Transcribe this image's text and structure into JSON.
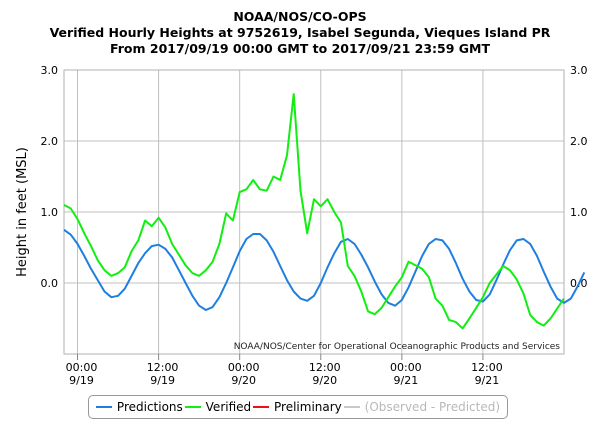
{
  "title": {
    "line1": "NOAA/NOS/CO-OPS",
    "line2": "Verified Hourly Heights at 9752619, Isabel Segunda, Vieques Island PR",
    "line3": "From 2017/09/19 00:00 GMT to 2017/09/21 23:59 GMT"
  },
  "credit": "NOAA/NOS/Center for Operational Oceanographic Products and Services",
  "colors": {
    "predictions": "#1f7fe0",
    "verified": "#11ee11",
    "preliminary": "#ee1111",
    "observed_minus_predicted": "#c8c8c8",
    "grid": "#c0c0c0"
  },
  "legend": [
    {
      "label": "Predictions",
      "color": "#1f7fe0"
    },
    {
      "label": "Verified",
      "color": "#11ee11"
    },
    {
      "label": "Preliminary",
      "color": "#ee1111"
    },
    {
      "label": "(Observed - Predicted)",
      "color": "#c8c8c8"
    }
  ],
  "chart_data": {
    "type": "line",
    "title": "Verified Hourly Heights at 9752619, Isabel Segunda, Vieques Island PR",
    "ylabel": "Height in feet (MSL)",
    "ylim": [
      -1.0,
      3.0
    ],
    "yticks": [
      0.0,
      1.0,
      2.0,
      3.0
    ],
    "ytick_labels": [
      "0.0",
      "1.0",
      "2.0",
      "3.0"
    ],
    "xlim_hours": [
      -2,
      72
    ],
    "xticks": [
      {
        "hour": 0,
        "time": "00:00",
        "date": "9/19"
      },
      {
        "hour": 12,
        "time": "12:00",
        "date": "9/19"
      },
      {
        "hour": 24,
        "time": "00:00",
        "date": "9/20"
      },
      {
        "hour": 36,
        "time": "12:00",
        "date": "9/20"
      },
      {
        "hour": 48,
        "time": "00:00",
        "date": "9/21"
      },
      {
        "hour": 60,
        "time": "12:00",
        "date": "9/21"
      }
    ],
    "grid": true,
    "series": [
      {
        "name": "Predictions",
        "x_start_hour": -2,
        "step_hours": 1,
        "values": [
          0.75,
          0.68,
          0.55,
          0.38,
          0.2,
          0.04,
          -0.12,
          -0.2,
          -0.18,
          -0.08,
          0.1,
          0.28,
          0.42,
          0.52,
          0.54,
          0.48,
          0.36,
          0.18,
          0.0,
          -0.18,
          -0.32,
          -0.38,
          -0.34,
          -0.2,
          0.0,
          0.22,
          0.45,
          0.62,
          0.69,
          0.69,
          0.6,
          0.44,
          0.24,
          0.04,
          -0.12,
          -0.22,
          -0.25,
          -0.18,
          0.0,
          0.22,
          0.42,
          0.58,
          0.62,
          0.55,
          0.4,
          0.22,
          0.02,
          -0.16,
          -0.28,
          -0.32,
          -0.24,
          -0.06,
          0.16,
          0.38,
          0.55,
          0.62,
          0.6,
          0.48,
          0.28,
          0.06,
          -0.12,
          -0.24,
          -0.26,
          -0.16,
          0.04,
          0.26,
          0.46,
          0.6,
          0.62,
          0.55,
          0.38,
          0.16,
          -0.05,
          -0.22,
          -0.28,
          -0.22,
          -0.05,
          0.15
        ]
      },
      {
        "name": "Verified",
        "x_start_hour": -2,
        "step_hours": 1,
        "values": [
          1.1,
          1.05,
          0.9,
          0.7,
          0.52,
          0.32,
          0.18,
          0.1,
          0.14,
          0.22,
          0.45,
          0.6,
          0.88,
          0.8,
          0.92,
          0.78,
          0.55,
          0.4,
          0.25,
          0.14,
          0.1,
          0.18,
          0.3,
          0.55,
          0.98,
          0.88,
          1.28,
          1.32,
          1.45,
          1.32,
          1.3,
          1.5,
          1.45,
          1.8,
          2.66,
          1.3,
          0.7,
          1.18,
          1.08,
          1.18,
          1.0,
          0.85,
          0.24,
          0.1,
          -0.12,
          -0.4,
          -0.44,
          -0.35,
          -0.2,
          -0.05,
          0.08,
          0.3,
          0.25,
          0.2,
          0.08,
          -0.22,
          -0.32,
          -0.52,
          -0.55,
          -0.64,
          -0.5,
          -0.35,
          -0.2,
          0.0,
          0.12,
          0.24,
          0.18,
          0.05,
          -0.15,
          -0.45,
          -0.55,
          -0.6,
          -0.5,
          -0.36,
          -0.22
        ]
      }
    ]
  }
}
